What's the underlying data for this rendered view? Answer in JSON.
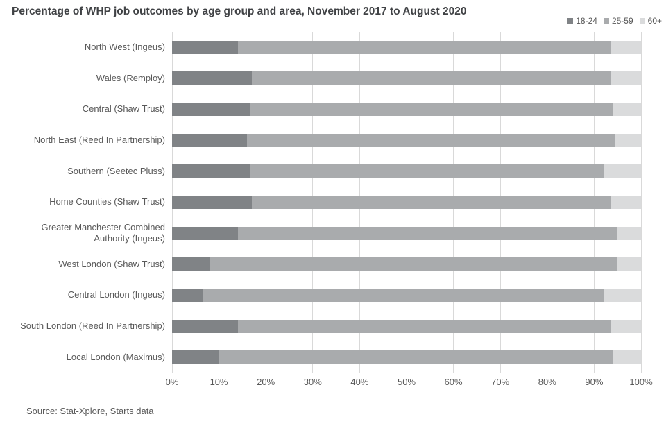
{
  "title": "Percentage of WHP job outcomes by age group and area, November 2017 to August 2020",
  "source_note": "Source: Stat-Xplore, Starts data",
  "colors": {
    "age_18_24": "#808386",
    "age_25_59": "#a9abad",
    "age_60_plus": "#dadbdc",
    "gridline": "#d9d9d9",
    "title_text": "#404245",
    "label_text": "#595959"
  },
  "chart_data": {
    "type": "bar",
    "stacked": true,
    "orientation": "horizontal",
    "title": "Percentage of WHP job outcomes by age group and area, November 2017 to August 2020",
    "categories": [
      "North West (Ingeus)",
      "Wales (Remploy)",
      "Central (Shaw Trust)",
      "North East (Reed In Partnership)",
      "Southern (Seetec Pluss)",
      "Home Counties (Shaw Trust)",
      "Greater Manchester Combined Authority (Ingeus)",
      "West London (Shaw Trust)",
      "Central London (Ingeus)",
      "South London (Reed In Partnership)",
      "Local London (Maximus)"
    ],
    "series": [
      {
        "name": "18-24",
        "color": "#808386",
        "values": [
          14,
          17,
          16.5,
          16,
          16.5,
          17,
          14,
          8,
          6.5,
          14,
          10
        ]
      },
      {
        "name": "25-59",
        "color": "#a9abad",
        "values": [
          79.5,
          76.5,
          77.5,
          78.5,
          75.5,
          76.5,
          81,
          87,
          85.5,
          79.5,
          84
        ]
      },
      {
        "name": "60+",
        "color": "#dadbdc",
        "values": [
          6.5,
          6.5,
          6,
          5.5,
          8,
          6.5,
          5,
          5,
          8,
          6.5,
          6
        ]
      }
    ],
    "x_axis": {
      "min": 0,
      "max": 100,
      "tick_step": 10,
      "ticks": [
        "0%",
        "10%",
        "20%",
        "30%",
        "40%",
        "50%",
        "60%",
        "70%",
        "80%",
        "90%",
        "100%"
      ]
    },
    "grid": true,
    "legend_position": "top-right"
  }
}
